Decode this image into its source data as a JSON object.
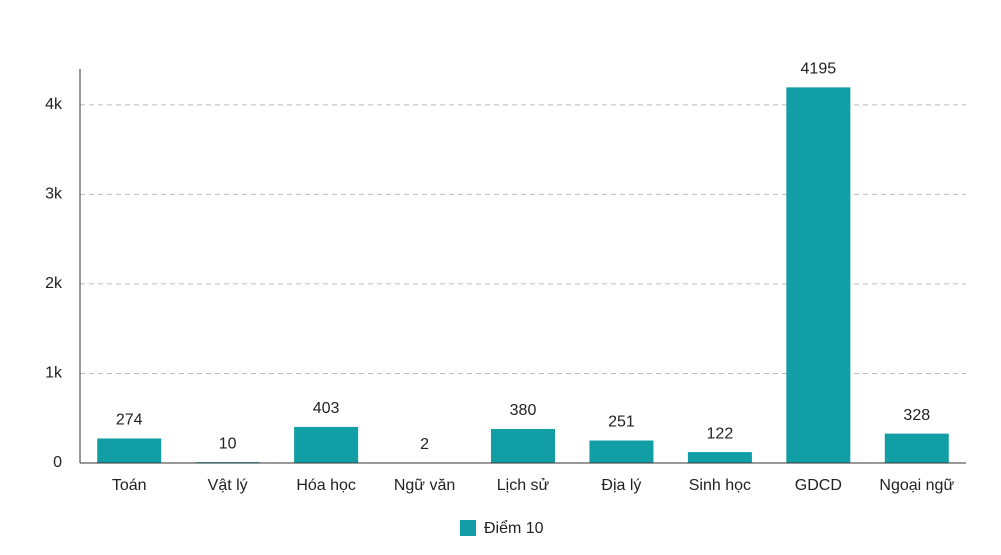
{
  "chart_data": {
    "type": "bar",
    "categories": [
      "Toán",
      "Vật lý",
      "Hóa học",
      "Ngữ văn",
      "Lịch sử",
      "Địa lý",
      "Sinh học",
      "GDCD",
      "Ngoại ngữ"
    ],
    "series": [
      {
        "name": "Điểm 10",
        "color": "#119ea5",
        "values": [
          274,
          10,
          403,
          2,
          380,
          251,
          122,
          4195,
          328
        ]
      }
    ],
    "ylim": [
      0,
      4400
    ],
    "yticks": [
      0,
      {
        "value": 1000,
        "label": "1k"
      },
      {
        "value": 2000,
        "label": "2k"
      },
      {
        "value": 3000,
        "label": "3k"
      },
      {
        "value": 4000,
        "label": "4k"
      }
    ],
    "grid": true,
    "legend": "bottom"
  }
}
